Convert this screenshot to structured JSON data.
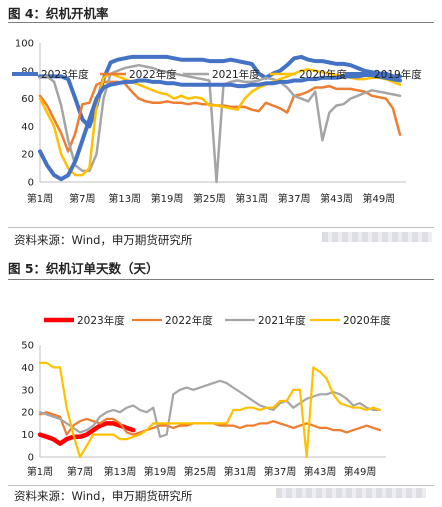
{
  "charts": [
    {
      "title": "图 4：织机开机率",
      "source": "资料来源：Wind，申万期货研究所"
    },
    {
      "title": "图 5：织机订单天数（天）",
      "source": "资料来源：Wind，申万期货研究所"
    }
  ],
  "chart_data": [
    {
      "type": "line",
      "title": "图 4：织机开机率",
      "x_categories": [
        "第1周",
        "第7周",
        "第13周",
        "第19周",
        "第25周",
        "第31周",
        "第37周",
        "第43周",
        "第49周"
      ],
      "ylim": [
        0,
        100
      ],
      "yticks": [
        0,
        20,
        40,
        60,
        80,
        100
      ],
      "grid": false,
      "legend_position": "top",
      "series": [
        {
          "name": "2023年度",
          "color": "#4472c4",
          "x": [
            1,
            2,
            3,
            4,
            5,
            6,
            7,
            8,
            9,
            10,
            11,
            12,
            13,
            14,
            15,
            16,
            17,
            18,
            19,
            20,
            21,
            22,
            23,
            24,
            25,
            26,
            27,
            28,
            29,
            30,
            31,
            32,
            33,
            34,
            35,
            36,
            37,
            38,
            39,
            40,
            41,
            42,
            43,
            44,
            45,
            46,
            47,
            48,
            49,
            50,
            51,
            52
          ],
          "values": [
            76,
            76,
            76,
            76,
            74,
            60,
            45,
            40,
            55,
            74,
            86,
            88,
            89,
            90,
            90,
            90,
            90,
            90,
            90,
            89,
            88,
            88,
            88,
            88,
            87,
            87,
            87,
            88,
            87,
            86,
            85,
            78,
            75,
            78,
            80,
            84,
            89,
            90,
            88,
            87,
            87,
            86,
            85,
            85,
            84,
            82,
            80,
            79,
            78,
            78,
            76,
            76
          ]
        },
        {
          "name": "2022年度",
          "color": "#ed7d31",
          "x": [
            1,
            2,
            3,
            4,
            5,
            6,
            7,
            8,
            9,
            10,
            11,
            12,
            13,
            14,
            15,
            16,
            17,
            18,
            19,
            20,
            21,
            22,
            23,
            24,
            25,
            26,
            27,
            28,
            29,
            30,
            31,
            32,
            33,
            34,
            35,
            36,
            37,
            38,
            39,
            40,
            41,
            42,
            43,
            44,
            45,
            46,
            47,
            48,
            49,
            50,
            51,
            52
          ],
          "values": [
            62,
            55,
            45,
            35,
            22,
            35,
            56,
            57,
            70,
            72,
            72,
            72,
            71,
            65,
            60,
            58,
            57,
            57,
            58,
            57,
            57,
            56,
            57,
            56,
            56,
            55,
            55,
            54,
            54,
            54,
            52,
            51,
            57,
            55,
            53,
            50,
            62,
            63,
            65,
            68,
            68,
            69,
            67,
            67,
            67,
            66,
            65,
            62,
            61,
            60,
            53,
            34
          ]
        },
        {
          "name": "2021年度",
          "color": "#a5a5a5",
          "x": [
            1,
            2,
            3,
            4,
            5,
            6,
            7,
            8,
            9,
            10,
            11,
            12,
            13,
            14,
            15,
            16,
            17,
            18,
            19,
            20,
            21,
            22,
            23,
            24,
            25,
            26,
            27,
            28,
            29,
            30,
            31,
            32,
            33,
            34,
            35,
            36,
            37,
            38,
            39,
            40,
            41,
            42,
            43,
            44,
            45,
            46,
            47,
            48,
            49,
            50,
            51,
            52
          ],
          "values": [
            75,
            76,
            72,
            55,
            30,
            12,
            8,
            8,
            20,
            60,
            78,
            80,
            82,
            83,
            84,
            83,
            82,
            80,
            79,
            78,
            77,
            76,
            75,
            74,
            73,
            0,
            70,
            72,
            73,
            72,
            72,
            73,
            75,
            74,
            72,
            68,
            62,
            60,
            58,
            65,
            30,
            50,
            55,
            56,
            60,
            62,
            64,
            66,
            65,
            64,
            63,
            62
          ]
        },
        {
          "name": "2020年度",
          "color": "#ffc000",
          "x": [
            1,
            2,
            3,
            4,
            5,
            6,
            7,
            8,
            9,
            10,
            11,
            12,
            13,
            14,
            15,
            16,
            17,
            18,
            19,
            20,
            21,
            22,
            23,
            24,
            25,
            26,
            27,
            28,
            29,
            30,
            31,
            32,
            33,
            34,
            35,
            36,
            37,
            38,
            39,
            40,
            41,
            42,
            43,
            44,
            45,
            46,
            47,
            48,
            49,
            50,
            51,
            52
          ],
          "values": [
            60,
            50,
            40,
            20,
            10,
            5,
            5,
            10,
            55,
            75,
            78,
            76,
            74,
            72,
            70,
            68,
            66,
            64,
            63,
            60,
            62,
            60,
            61,
            60,
            55,
            55,
            54,
            53,
            52,
            60,
            65,
            68,
            70,
            72,
            74,
            76,
            78,
            80,
            81,
            80,
            79,
            78,
            77,
            76,
            75,
            74,
            74,
            75,
            75,
            74,
            72,
            70
          ]
        },
        {
          "name": "2019年度",
          "color": "#4472c4",
          "x": [
            1,
            2,
            3,
            4,
            5,
            6,
            7,
            8,
            9,
            10,
            11,
            12,
            13,
            14,
            15,
            16,
            17,
            18,
            19,
            20,
            21,
            22,
            23,
            24,
            25,
            26,
            27,
            28,
            29,
            30,
            31,
            32,
            33,
            34,
            35,
            36,
            37,
            38,
            39,
            40,
            41,
            42,
            43,
            44,
            45,
            46,
            47,
            48,
            49,
            50,
            51,
            52
          ],
          "values": [
            22,
            12,
            5,
            2,
            5,
            15,
            30,
            45,
            60,
            68,
            70,
            71,
            72,
            72,
            73,
            73,
            72,
            72,
            71,
            71,
            70,
            70,
            70,
            70,
            70,
            70,
            70,
            70,
            69,
            69,
            70,
            70,
            71,
            71,
            72,
            72,
            73,
            73,
            74,
            74,
            75,
            75,
            75,
            76,
            76,
            76,
            77,
            77,
            76,
            75,
            74,
            73
          ]
        }
      ]
    },
    {
      "type": "line",
      "title": "图 5：织机订单天数（天）",
      "x_categories": [
        "第1周",
        "第7周",
        "第13周",
        "第19周",
        "第25周",
        "第31周",
        "第37周",
        "第43周",
        "第49周"
      ],
      "ylim": [
        0,
        50
      ],
      "yticks": [
        0,
        10,
        20,
        30,
        40,
        50
      ],
      "grid": false,
      "legend_position": "top",
      "series": [
        {
          "name": "2023年度",
          "color": "#ff0000",
          "x": [
            1,
            2,
            3,
            4,
            5,
            6,
            7,
            8,
            9,
            10,
            11,
            12,
            13,
            14,
            15
          ],
          "values": [
            10,
            9,
            8,
            6,
            8,
            9,
            9,
            10,
            12,
            14,
            15,
            15,
            14,
            13,
            12
          ]
        },
        {
          "name": "2022年度",
          "color": "#ed7d31",
          "x": [
            1,
            2,
            3,
            4,
            5,
            6,
            7,
            8,
            9,
            10,
            11,
            12,
            13,
            14,
            15,
            16,
            17,
            18,
            19,
            20,
            21,
            22,
            23,
            24,
            25,
            26,
            27,
            28,
            29,
            30,
            31,
            32,
            33,
            34,
            35,
            36,
            37,
            38,
            39,
            40,
            41,
            42,
            43,
            44,
            45,
            46,
            47,
            48,
            49,
            50,
            51,
            52
          ],
          "values": [
            19,
            20,
            19,
            18,
            10,
            14,
            16,
            17,
            16,
            15,
            17,
            17,
            15,
            11,
            10,
            11,
            12,
            13,
            14,
            14,
            13,
            14,
            14,
            15,
            15,
            15,
            15,
            14,
            14,
            14,
            13,
            14,
            14,
            15,
            15,
            16,
            15,
            14,
            13,
            14,
            15,
            14,
            13,
            13,
            12,
            12,
            11,
            12,
            13,
            14,
            13,
            12
          ]
        },
        {
          "name": "2021年度",
          "color": "#a5a5a5",
          "x": [
            1,
            2,
            3,
            4,
            5,
            6,
            7,
            8,
            9,
            10,
            11,
            12,
            13,
            14,
            15,
            16,
            17,
            18,
            19,
            20,
            21,
            22,
            23,
            24,
            25,
            26,
            27,
            28,
            29,
            30,
            31,
            32,
            33,
            34,
            35,
            36,
            37,
            38,
            39,
            40,
            41,
            42,
            43,
            44,
            45,
            46,
            47,
            48,
            49,
            50,
            51,
            52
          ],
          "values": [
            20,
            19,
            18,
            17,
            15,
            13,
            11,
            12,
            14,
            18,
            20,
            21,
            20,
            22,
            23,
            21,
            20,
            22,
            9,
            10,
            28,
            30,
            31,
            30,
            31,
            32,
            33,
            34,
            33,
            31,
            29,
            27,
            25,
            23,
            22,
            21,
            24,
            25,
            22,
            24,
            26,
            27,
            28,
            28,
            29,
            28,
            26,
            23,
            24,
            22,
            21,
            21
          ]
        },
        {
          "name": "2020年度",
          "color": "#ffc000",
          "x": [
            1,
            2,
            3,
            4,
            5,
            6,
            7,
            8,
            9,
            10,
            11,
            12,
            13,
            14,
            15,
            16,
            17,
            18,
            19,
            20,
            21,
            22,
            23,
            24,
            25,
            26,
            27,
            28,
            29,
            30,
            31,
            32,
            33,
            34,
            35,
            36,
            37,
            38,
            39,
            40,
            41,
            42,
            43,
            44,
            45,
            46,
            47,
            48,
            49,
            50,
            51,
            52
          ],
          "values": [
            42,
            42,
            40,
            40,
            22,
            10,
            0,
            5,
            10,
            10,
            10,
            10,
            8,
            8,
            9,
            10,
            12,
            15,
            15,
            15,
            15,
            15,
            15,
            15,
            15,
            15,
            15,
            15,
            15,
            21,
            21,
            22,
            22,
            21,
            22,
            22,
            25,
            25,
            30,
            30,
            0,
            40,
            38,
            35,
            28,
            24,
            23,
            22,
            22,
            21,
            22,
            21
          ]
        }
      ]
    }
  ]
}
